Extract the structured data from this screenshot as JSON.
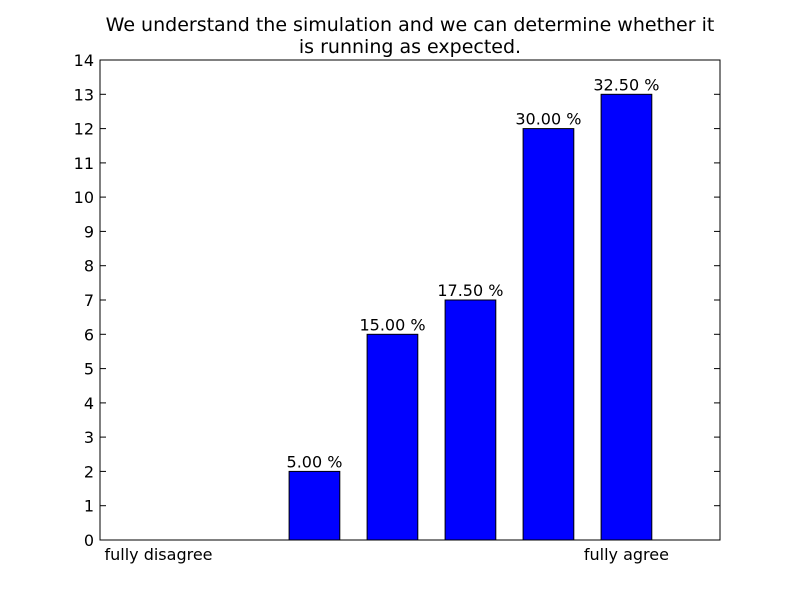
{
  "chart_data": {
    "type": "bar",
    "title_lines": [
      "We understand the simulation and we can determine whether it",
      "is running as expected."
    ],
    "categories": [
      "fully disagree",
      "",
      "",
      "",
      "",
      "",
      "fully agree"
    ],
    "values": [
      0,
      0,
      2,
      6,
      7,
      12,
      13
    ],
    "data_labels": [
      "",
      "",
      "5.00 %",
      "15.00 %",
      "17.50 %",
      "30.00 %",
      "32.50 %"
    ],
    "ylim": [
      0,
      14
    ],
    "yticks": [
      0,
      1,
      2,
      3,
      4,
      5,
      6,
      7,
      8,
      9,
      10,
      11,
      12,
      13,
      14
    ],
    "xlabel": "",
    "ylabel": "",
    "grid": false,
    "bar_color": "#0000ff"
  }
}
